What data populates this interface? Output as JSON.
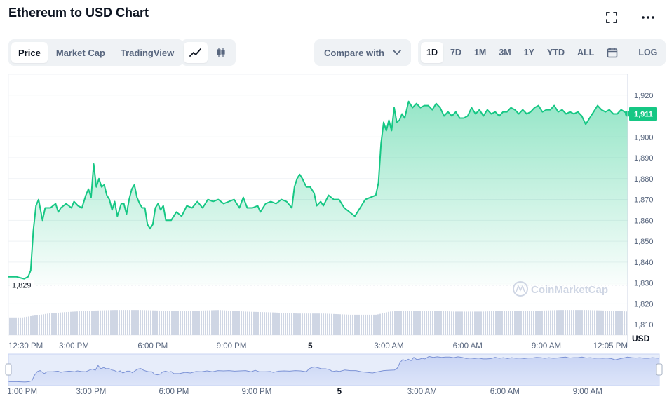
{
  "header": {
    "title": "Ethereum to USD Chart",
    "fullscreen_icon": "expand-icon",
    "more_icon": "more-horizontal-icon"
  },
  "view_tabs": [
    {
      "label": "Price",
      "active": true
    },
    {
      "label": "Market Cap",
      "active": false
    },
    {
      "label": "TradingView",
      "active": false
    }
  ],
  "chart_type_buttons": [
    {
      "icon": "line-chart-icon",
      "active": true
    },
    {
      "icon": "candlestick-icon",
      "active": false
    }
  ],
  "compare": {
    "label": "Compare with",
    "icon": "chevron-down-icon"
  },
  "ranges": [
    {
      "label": "1D",
      "active": true
    },
    {
      "label": "7D",
      "active": false
    },
    {
      "label": "1M",
      "active": false
    },
    {
      "label": "3M",
      "active": false
    },
    {
      "label": "1Y",
      "active": false
    },
    {
      "label": "YTD",
      "active": false
    },
    {
      "label": "ALL",
      "active": false
    }
  ],
  "calendar_icon": "calendar-icon",
  "log_label": "LOG",
  "watermark": "CoinMarketCap",
  "colors": {
    "line": "#16c784",
    "fill_top": "#16c784",
    "volume": "#cfd6e4",
    "navigator_fill": "#dde5fa",
    "navigator_line": "#5470c6",
    "current_badge": "#16c784"
  },
  "chart_data": {
    "type": "area",
    "ylabel": "USD",
    "ylim": [
      1805,
      1930
    ],
    "y_ticks": [
      1810,
      1820,
      1830,
      1840,
      1850,
      1860,
      1870,
      1880,
      1890,
      1900,
      1910,
      1920
    ],
    "y_tick_labels": [
      "1,810",
      "1,820",
      "1,830",
      "1,840",
      "1,850",
      "1,860",
      "1,870",
      "1,880",
      "1,890",
      "1,900",
      "1,910",
      "1,920"
    ],
    "open_price": 1829,
    "open_price_label": "1,829",
    "current_price": 1911,
    "current_price_label": "1,911",
    "x_range_hours": [
      0,
      23.6
    ],
    "x_tick_hours": [
      0,
      2.5,
      5.5,
      8.5,
      11.5,
      14.5,
      17.5,
      20.5,
      23.6
    ],
    "x_tick_labels": [
      "12:30 PM",
      "3:00 PM",
      "6:00 PM",
      "9:00 PM",
      "5",
      "3:00 AM",
      "6:00 AM",
      "9:00 AM",
      "12:05 PM"
    ],
    "series": [
      {
        "points": [
          [
            0,
            1833
          ],
          [
            0.3,
            1833
          ],
          [
            0.6,
            1832
          ],
          [
            0.75,
            1833
          ],
          [
            0.85,
            1836
          ],
          [
            0.95,
            1855
          ],
          [
            1.05,
            1867
          ],
          [
            1.15,
            1870
          ],
          [
            1.3,
            1860
          ],
          [
            1.4,
            1866
          ],
          [
            1.6,
            1866
          ],
          [
            1.8,
            1868
          ],
          [
            1.9,
            1864
          ],
          [
            2.0,
            1866
          ],
          [
            2.2,
            1868
          ],
          [
            2.4,
            1866
          ],
          [
            2.5,
            1869
          ],
          [
            2.65,
            1867
          ],
          [
            2.8,
            1866
          ],
          [
            2.95,
            1872
          ],
          [
            3.05,
            1875
          ],
          [
            3.15,
            1871
          ],
          [
            3.25,
            1887
          ],
          [
            3.35,
            1876
          ],
          [
            3.45,
            1880
          ],
          [
            3.55,
            1876
          ],
          [
            3.65,
            1877
          ],
          [
            3.75,
            1872
          ],
          [
            3.85,
            1870
          ],
          [
            3.95,
            1865
          ],
          [
            4.05,
            1869
          ],
          [
            4.15,
            1862
          ],
          [
            4.3,
            1868
          ],
          [
            4.4,
            1868
          ],
          [
            4.5,
            1863
          ],
          [
            4.6,
            1870
          ],
          [
            4.7,
            1875
          ],
          [
            4.8,
            1877
          ],
          [
            4.9,
            1871
          ],
          [
            5.0,
            1868
          ],
          [
            5.1,
            1866
          ],
          [
            5.2,
            1866
          ],
          [
            5.3,
            1858
          ],
          [
            5.4,
            1856
          ],
          [
            5.5,
            1858
          ],
          [
            5.6,
            1866
          ],
          [
            5.7,
            1868
          ],
          [
            5.8,
            1865
          ],
          [
            5.9,
            1867
          ],
          [
            6.0,
            1860
          ],
          [
            6.2,
            1860
          ],
          [
            6.4,
            1864
          ],
          [
            6.6,
            1862
          ],
          [
            6.8,
            1867
          ],
          [
            7.0,
            1866
          ],
          [
            7.2,
            1869
          ],
          [
            7.4,
            1866
          ],
          [
            7.6,
            1870
          ],
          [
            7.8,
            1869
          ],
          [
            8.0,
            1870
          ],
          [
            8.2,
            1868
          ],
          [
            8.4,
            1869
          ],
          [
            8.6,
            1870
          ],
          [
            8.8,
            1866
          ],
          [
            8.95,
            1871
          ],
          [
            9.1,
            1866
          ],
          [
            9.3,
            1866
          ],
          [
            9.5,
            1867
          ],
          [
            9.6,
            1864
          ],
          [
            9.8,
            1868
          ],
          [
            10.0,
            1869
          ],
          [
            10.2,
            1868
          ],
          [
            10.4,
            1870
          ],
          [
            10.6,
            1869
          ],
          [
            10.8,
            1866
          ],
          [
            10.9,
            1876
          ],
          [
            11.0,
            1880
          ],
          [
            11.1,
            1882
          ],
          [
            11.2,
            1880
          ],
          [
            11.35,
            1876
          ],
          [
            11.5,
            1876
          ],
          [
            11.65,
            1873
          ],
          [
            11.75,
            1867
          ],
          [
            11.9,
            1869
          ],
          [
            12.0,
            1867
          ],
          [
            12.2,
            1872
          ],
          [
            12.4,
            1870
          ],
          [
            12.6,
            1870
          ],
          [
            12.8,
            1866
          ],
          [
            13.0,
            1864
          ],
          [
            13.2,
            1862
          ],
          [
            13.4,
            1866
          ],
          [
            13.6,
            1870
          ],
          [
            13.8,
            1871
          ],
          [
            14.0,
            1872
          ],
          [
            14.1,
            1878
          ],
          [
            14.2,
            1897
          ],
          [
            14.3,
            1907
          ],
          [
            14.4,
            1903
          ],
          [
            14.5,
            1908
          ],
          [
            14.6,
            1903
          ],
          [
            14.7,
            1914
          ],
          [
            14.8,
            1907
          ],
          [
            14.9,
            1908
          ],
          [
            15.0,
            1911
          ],
          [
            15.1,
            1909
          ],
          [
            15.25,
            1917
          ],
          [
            15.4,
            1914
          ],
          [
            15.55,
            1916
          ],
          [
            15.7,
            1914
          ],
          [
            15.85,
            1915
          ],
          [
            16.0,
            1915
          ],
          [
            16.15,
            1913
          ],
          [
            16.3,
            1916
          ],
          [
            16.45,
            1914
          ],
          [
            16.6,
            1910
          ],
          [
            16.75,
            1912
          ],
          [
            16.9,
            1910
          ],
          [
            17.05,
            1912
          ],
          [
            17.2,
            1909
          ],
          [
            17.35,
            1909
          ],
          [
            17.5,
            1910
          ],
          [
            17.65,
            1914
          ],
          [
            17.8,
            1911
          ],
          [
            17.95,
            1913
          ],
          [
            18.1,
            1910
          ],
          [
            18.25,
            1913
          ],
          [
            18.4,
            1911
          ],
          [
            18.55,
            1912
          ],
          [
            18.7,
            1910
          ],
          [
            18.85,
            1912
          ],
          [
            19.0,
            1912
          ],
          [
            19.15,
            1914
          ],
          [
            19.3,
            1913
          ],
          [
            19.45,
            1911
          ],
          [
            19.6,
            1913
          ],
          [
            19.75,
            1911
          ],
          [
            19.9,
            1912
          ],
          [
            20.05,
            1914
          ],
          [
            20.2,
            1915
          ],
          [
            20.35,
            1912
          ],
          [
            20.5,
            1913
          ],
          [
            20.65,
            1913
          ],
          [
            20.8,
            1915
          ],
          [
            20.95,
            1912
          ],
          [
            21.1,
            1913
          ],
          [
            21.25,
            1911
          ],
          [
            21.4,
            1912
          ],
          [
            21.55,
            1911
          ],
          [
            21.7,
            1912
          ],
          [
            21.85,
            1910
          ],
          [
            22.0,
            1906
          ],
          [
            22.15,
            1909
          ],
          [
            22.3,
            1912
          ],
          [
            22.45,
            1915
          ],
          [
            22.6,
            1913
          ],
          [
            22.75,
            1912
          ],
          [
            22.9,
            1913
          ],
          [
            23.05,
            1911
          ],
          [
            23.2,
            1911
          ],
          [
            23.35,
            1913
          ],
          [
            23.6,
            1911
          ]
        ]
      }
    ],
    "volume": [
      [
        0,
        0.45
      ],
      [
        0.5,
        0.45
      ],
      [
        1.0,
        0.5
      ],
      [
        1.5,
        0.55
      ],
      [
        2.0,
        0.58
      ],
      [
        3.0,
        0.62
      ],
      [
        4.0,
        0.64
      ],
      [
        5.0,
        0.64
      ],
      [
        6.0,
        0.62
      ],
      [
        7.0,
        0.62
      ],
      [
        8.0,
        0.64
      ],
      [
        9.0,
        0.6
      ],
      [
        10.0,
        0.58
      ],
      [
        11.0,
        0.55
      ],
      [
        12.0,
        0.55
      ],
      [
        13.0,
        0.52
      ],
      [
        14.0,
        0.52
      ],
      [
        14.5,
        0.6
      ],
      [
        15.0,
        0.62
      ],
      [
        16.0,
        0.62
      ],
      [
        17.0,
        0.6
      ],
      [
        18.0,
        0.6
      ],
      [
        19.0,
        0.62
      ],
      [
        20.0,
        0.62
      ],
      [
        21.0,
        0.64
      ],
      [
        22.0,
        0.64
      ],
      [
        23.0,
        0.62
      ],
      [
        23.6,
        0.6
      ]
    ],
    "navigator": {
      "x_tick_hours": [
        0.5,
        3.0,
        6.0,
        9.0,
        12.0,
        15.0,
        18.0,
        21.0
      ],
      "x_tick_labels": [
        "1:00 PM",
        "3:00 PM",
        "6:00 PM",
        "9:00 PM",
        "5",
        "3:00 AM",
        "6:00 AM",
        "9:00 AM"
      ]
    }
  }
}
